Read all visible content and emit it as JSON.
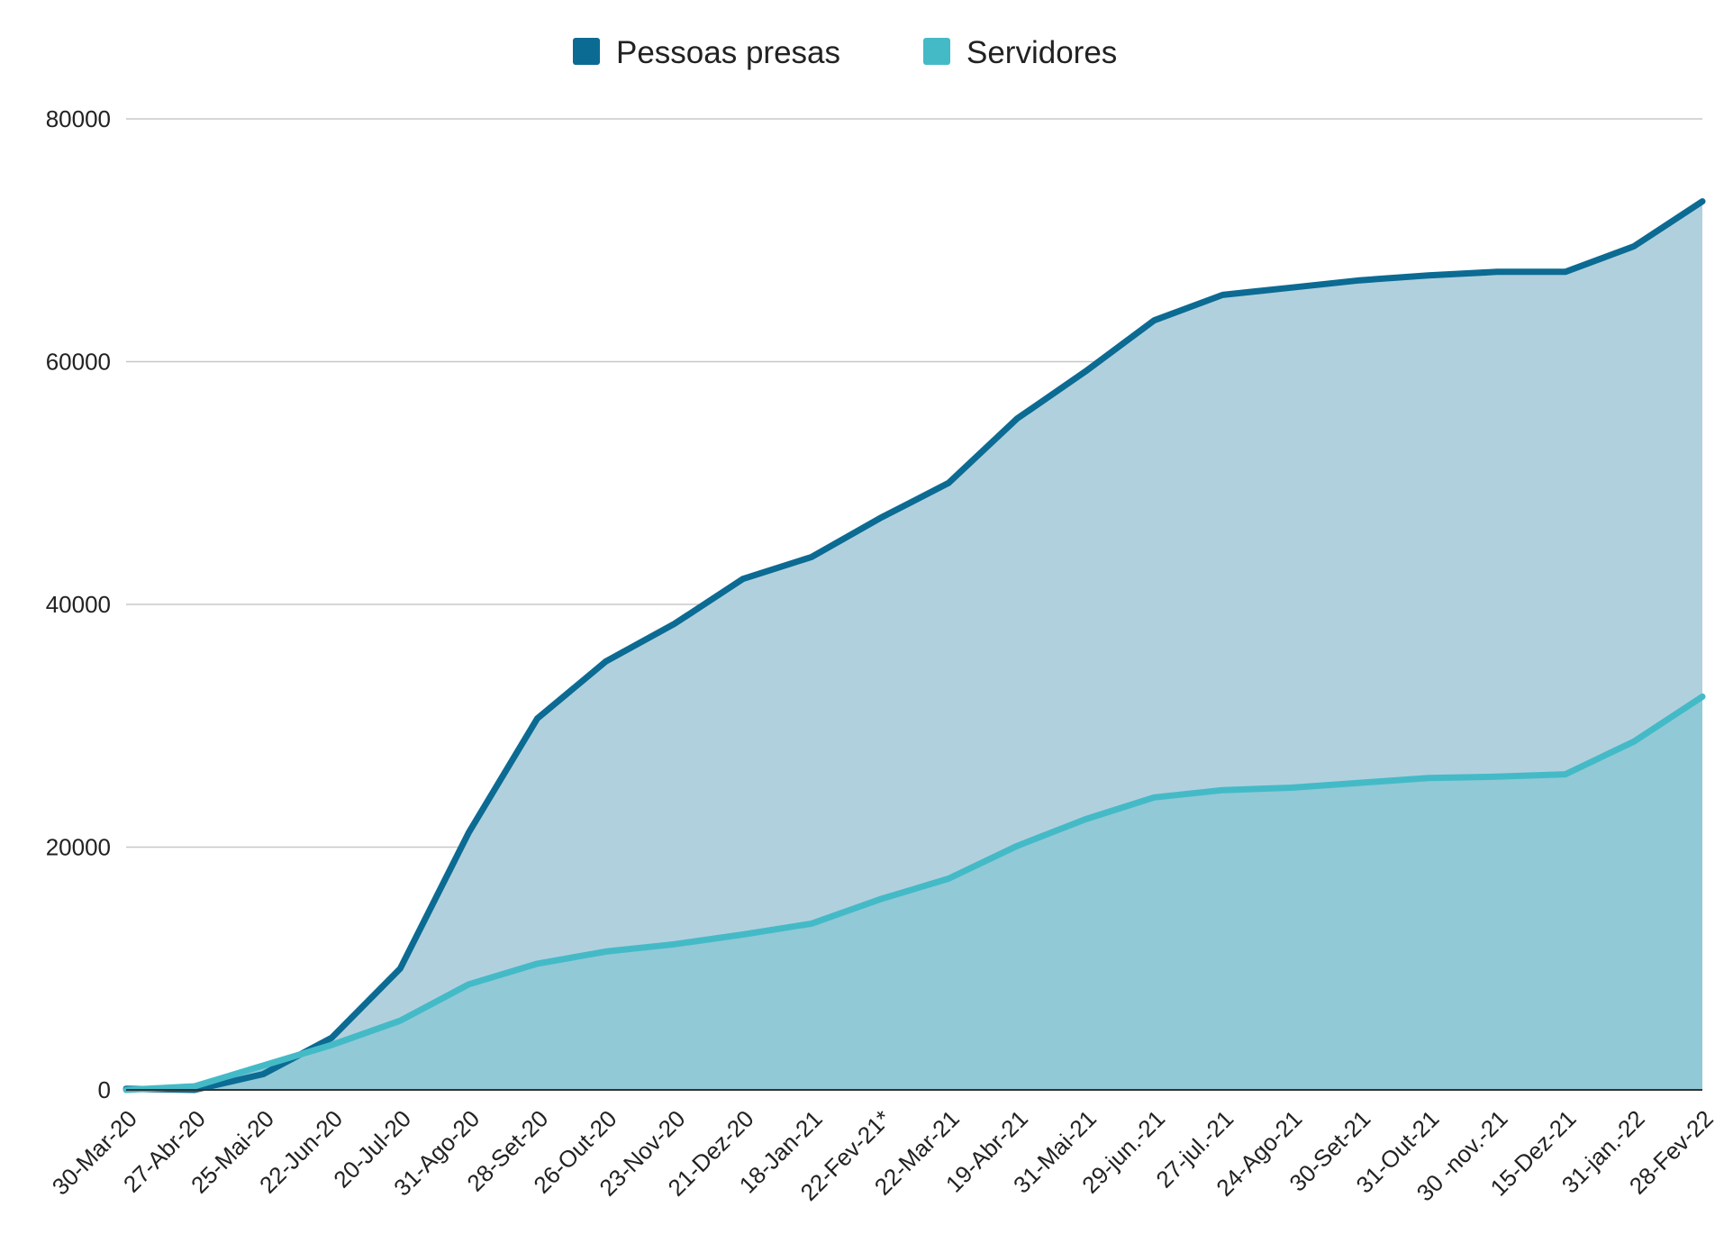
{
  "colors": {
    "pessoas_presas": "#0b6b93",
    "servidores": "#44bac7",
    "pessoas_presas_fill": "#b1d0dd",
    "servidores_fill": "#91c9d6",
    "grid": "#c8c8c8",
    "baseline": "#333333"
  },
  "legend": {
    "items": [
      {
        "label": "Pessoas presas",
        "color_key": "pessoas_presas"
      },
      {
        "label": "Servidores",
        "color_key": "servidores"
      }
    ]
  },
  "chart_data": {
    "type": "area",
    "title": "",
    "xlabel": "",
    "ylabel": "",
    "ylim": [
      0,
      80000
    ],
    "yticks": [
      "0",
      "20000",
      "40000",
      "60000",
      "80000"
    ],
    "grid": true,
    "legend_position": "top",
    "categories": [
      "30-Mar-20",
      "27-Abr-20",
      "25-Mai-20",
      "22-Jun-20",
      "20-Jul-20",
      "31-Ago-20",
      "28-Set-20",
      "26-Out-20",
      "23-Nov-20",
      "21-Dez-20",
      "18-Jan-21",
      "22-Fev-21*",
      "22-Mar-21",
      "19-Abr-21",
      "31-Mai-21",
      "29-jun.-21",
      "27-jul.-21",
      "24-Ago-21",
      "30-Set-21",
      "31-Out-21",
      "30 -nov.-21",
      "15-Dez-21",
      "31-jan.-22",
      "28-Fev-22"
    ],
    "series": [
      {
        "name": "Pessoas presas",
        "values": [
          100,
          0,
          1300,
          4300,
          10000,
          21200,
          30600,
          35300,
          38400,
          42100,
          43900,
          47100,
          50000,
          55300,
          59200,
          63400,
          65500,
          66100,
          66700,
          67100,
          67400,
          67400,
          69500,
          73200
        ]
      },
      {
        "name": "Servidores",
        "values": [
          0,
          300,
          2000,
          3700,
          5700,
          8700,
          10400,
          11400,
          12000,
          12800,
          13700,
          15700,
          17400,
          20100,
          22300,
          24100,
          24700,
          24900,
          25300,
          25700,
          25800,
          26000,
          28700,
          32400
        ]
      }
    ]
  }
}
